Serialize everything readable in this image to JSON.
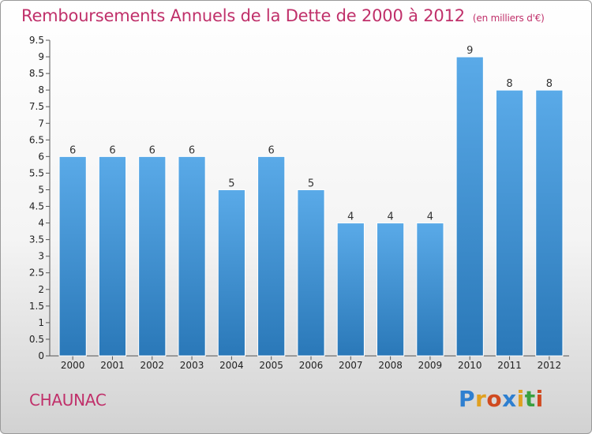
{
  "chart_data": {
    "type": "bar",
    "title": "Remboursements Annuels de la Dette de 2000 à 2012",
    "unit_note": "(en milliers d'€)",
    "categories": [
      "2000",
      "2001",
      "2002",
      "2003",
      "2004",
      "2005",
      "2006",
      "2007",
      "2008",
      "2009",
      "2010",
      "2011",
      "2012"
    ],
    "values": [
      6,
      6,
      6,
      6,
      5,
      6,
      5,
      4,
      4,
      4,
      9,
      8,
      8
    ],
    "data_labels": [
      "6",
      "6",
      "6",
      "6",
      "5",
      "6",
      "5",
      "4",
      "4",
      "4",
      "9",
      "8",
      "8"
    ],
    "ylim": [
      0,
      9.5
    ],
    "yticks": [
      0,
      0.5,
      1,
      1.5,
      2,
      2.5,
      3,
      3.5,
      4,
      4.5,
      5,
      5.5,
      6,
      6.5,
      7,
      7.5,
      8,
      8.5,
      9,
      9.5
    ],
    "ytick_labels": [
      "0",
      "0.5",
      "1",
      "1.5",
      "2",
      "2.5",
      "3",
      "3.5",
      "4",
      "4.5",
      "5",
      "5.5",
      "6",
      "6.5",
      "7",
      "7.5",
      "8",
      "8.5",
      "9",
      "9.5"
    ],
    "bar_color_top": "#5aaae8",
    "bar_color_bottom": "#2a78b8",
    "grid": false,
    "xlabel": "",
    "ylabel": ""
  },
  "footer": {
    "city": "CHAUNAC",
    "logo": [
      {
        "char": "P",
        "color": "#2e7fd0"
      },
      {
        "char": "r",
        "color": "#e0a020"
      },
      {
        "char": "o",
        "color": "#d04a20"
      },
      {
        "char": "x",
        "color": "#2e7fd0"
      },
      {
        "char": "i",
        "color": "#e0a020"
      },
      {
        "char": "t",
        "color": "#3aa040"
      },
      {
        "char": "i",
        "color": "#d04a20"
      }
    ]
  },
  "colors": {
    "title": "#c0306a",
    "city": "#c0306a"
  }
}
